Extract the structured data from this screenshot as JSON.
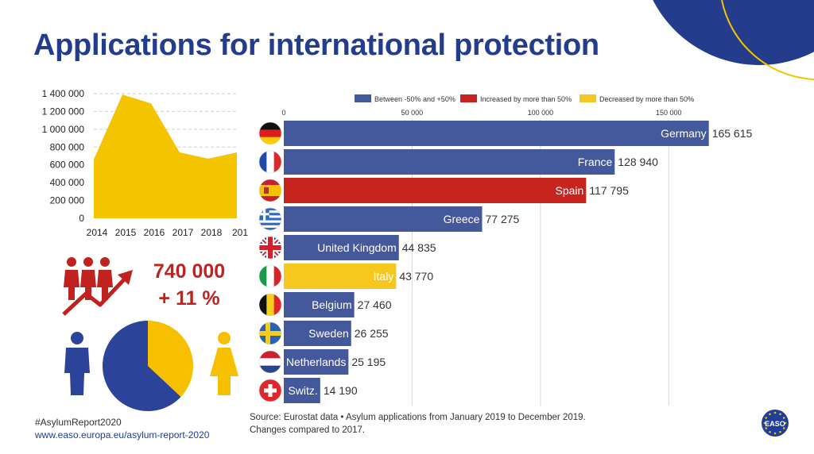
{
  "title": "Applications for international protection",
  "colors": {
    "navy": "#233d8c",
    "bar_blue": "#44599b",
    "bar_red": "#c7241f",
    "bar_yellow": "#f6c71e",
    "area_yellow": "#f5c400",
    "pie_blue": "#2b449a",
    "pie_yellow": "#f6c000",
    "accent_red": "#c0231f"
  },
  "legend": [
    {
      "label": "Between -50% and +50%",
      "color": "#44599b"
    },
    {
      "label": "Increased by more than 50%",
      "color": "#c7241f"
    },
    {
      "label": "Decreased by more than 50%",
      "color": "#f6c71e"
    }
  ],
  "highlight": {
    "total": "740 000",
    "change": "+ 11 %"
  },
  "icons": {
    "people_growth": "people-growth-icon",
    "male": "male-person-icon",
    "female": "female-person-icon",
    "logo": "easo-logo-icon"
  },
  "footer": {
    "hashtag": "#AsylumReport2020",
    "url": "www.easo.europa.eu/asylum-report-2020",
    "source_line1": "Source: Eurostat data • Asylum applications from January 2019 to December 2019.",
    "source_line2": "Changes compared to 2017."
  },
  "logo_text": "EASO",
  "chart_data": [
    {
      "type": "area",
      "x": [
        "2014",
        "2015",
        "2016",
        "2017",
        "2018",
        "201"
      ],
      "values": [
        660000,
        1390000,
        1290000,
        740000,
        670000,
        740000
      ],
      "yticks": [
        "0",
        "200 000",
        "400 000",
        "600 000",
        "800 000",
        "1 000 000",
        "1 200 000",
        "1 400 000"
      ],
      "ylim": [
        0,
        1400000
      ],
      "grid": true
    },
    {
      "type": "bar",
      "orientation": "horizontal",
      "legend_position": "top",
      "categories": [
        "Germany",
        "France",
        "Spain",
        "Greece",
        "United Kingdom",
        "Italy",
        "Belgium",
        "Sweden",
        "Netherlands",
        "Switz."
      ],
      "values": [
        165615,
        128940,
        117795,
        77275,
        44835,
        43770,
        27460,
        26255,
        25195,
        14190
      ],
      "value_labels": [
        "165 615",
        "128 940",
        "117 795",
        "77 275",
        "44 835",
        "43 770",
        "27 460",
        "26 255",
        "25 195",
        "14 190"
      ],
      "groups": [
        "Between -50% and +50%",
        "Between -50% and +50%",
        "Increased by more than 50%",
        "Between -50% and +50%",
        "Between -50% and +50%",
        "Decreased by more than 50%",
        "Between -50% and +50%",
        "Between -50% and +50%",
        "Between -50% and +50%",
        "Between -50% and +50%"
      ],
      "flags": [
        "germany-flag-icon",
        "france-flag-icon",
        "spain-flag-icon",
        "greece-flag-icon",
        "united-kingdom-flag-icon",
        "italy-flag-icon",
        "belgium-flag-icon",
        "sweden-flag-icon",
        "netherlands-flag-icon",
        "switzerland-flag-icon"
      ],
      "xticks": [
        "0",
        "50 000",
        "100 000",
        "150 000"
      ],
      "xlim": [
        0,
        175000
      ]
    },
    {
      "type": "pie",
      "labels": [
        "Men",
        "Women"
      ],
      "values": [
        0.63,
        0.37
      ],
      "colors": [
        "#2b449a",
        "#f6c000"
      ]
    }
  ]
}
